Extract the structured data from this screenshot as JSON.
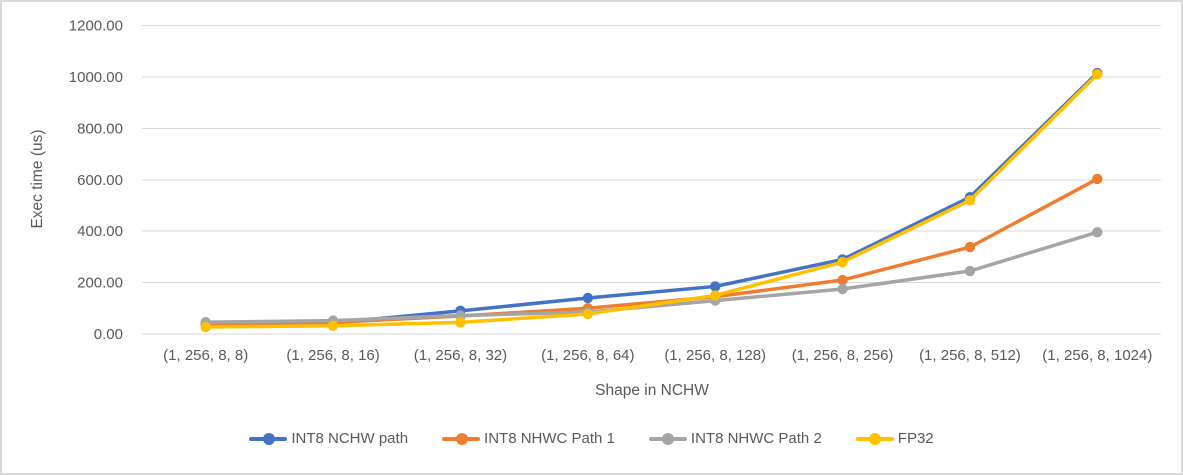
{
  "colors": {
    "background": "#FFFFFF",
    "border": "#D9D9D9",
    "grid": "#D9D9D9",
    "text": "#595959"
  },
  "chart_data": {
    "type": "line",
    "title": "",
    "xlabel": "Shape in NCHW",
    "ylabel": "Exec time (us)",
    "ylim": [
      0,
      1200
    ],
    "ytick_step": 200,
    "ytick_labels": [
      "0.00",
      "200.00",
      "400.00",
      "600.00",
      "800.00",
      "1000.00",
      "1200.00"
    ],
    "grid": true,
    "legend_position": "bottom",
    "marker": "circle",
    "categories": [
      "(1, 256, 8, 8)",
      "(1, 256, 8, 16)",
      "(1, 256, 8, 32)",
      "(1, 256, 8, 64)",
      "(1, 256, 8, 128)",
      "(1, 256, 8, 256)",
      "(1, 256, 8, 512)",
      "(1, 256, 8, 1024)"
    ],
    "series": [
      {
        "name": "INT8 NCHW path",
        "color": "#4472C4",
        "values": [
          38,
          43,
          90,
          140,
          185,
          290,
          532,
          1015
        ]
      },
      {
        "name": "INT8 NHWC Path 1",
        "color": "#ED7D31",
        "values": [
          40,
          45,
          70,
          100,
          145,
          210,
          338,
          603
        ]
      },
      {
        "name": "INT8 NHWC Path 2",
        "color": "#A5A5A5",
        "values": [
          46,
          52,
          72,
          85,
          130,
          175,
          245,
          396
        ]
      },
      {
        "name": "FP32",
        "color": "#FFC000",
        "values": [
          27,
          32,
          45,
          78,
          150,
          280,
          520,
          1010
        ]
      }
    ]
  }
}
